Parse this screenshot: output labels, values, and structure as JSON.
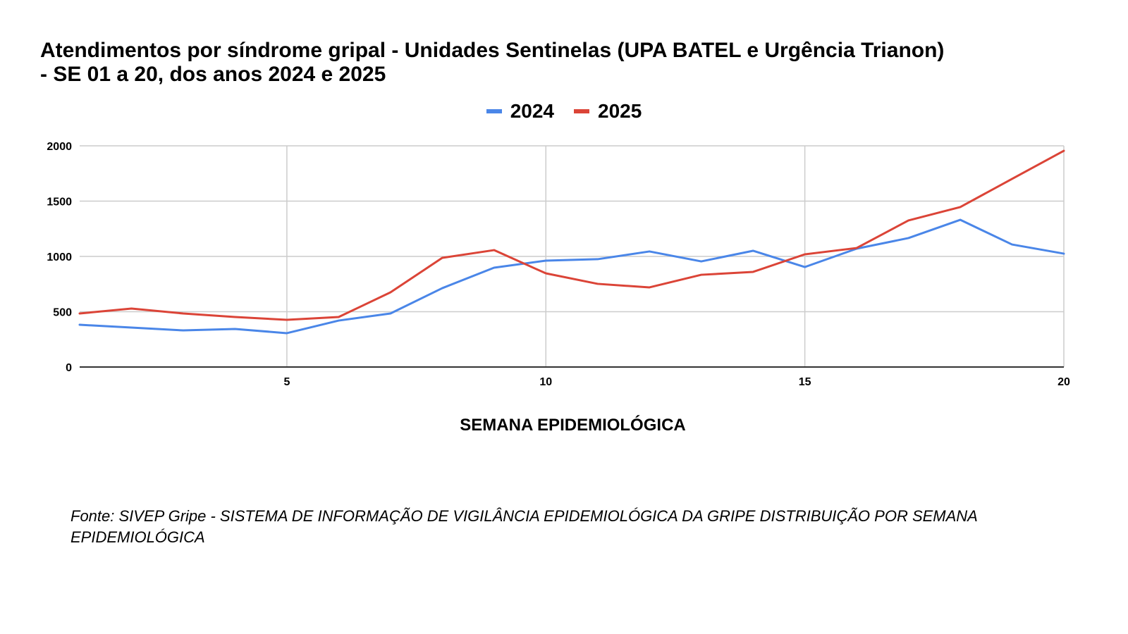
{
  "title_lines": [
    "Atendimentos por síndrome gripal - Unidades Sentinelas (UPA BATEL e Urgência Trianon)",
    "- SE 01 a 20, dos anos 2024 e 2025"
  ],
  "source_note": "Fonte: SIVEP Gripe - SISTEMA DE INFORMAÇÃO DE VIGILÂNCIA EPIDEMIOLÓGICA DA GRIPE DISTRIBUIÇÃO POR SEMANA EPIDEMIOLÓGICA",
  "chart_data": {
    "type": "line",
    "title": "Atendimentos por síndrome gripal - Unidades Sentinelas (UPA BATEL e Urgência Trianon) - SE 01 a 20, dos anos 2024 e 2025",
    "xlabel": "SEMANA EPIDEMIOLÓGICA",
    "ylabel": "",
    "x": [
      1,
      2,
      3,
      4,
      5,
      6,
      7,
      8,
      9,
      10,
      11,
      12,
      13,
      14,
      15,
      16,
      17,
      18,
      19,
      20
    ],
    "xlim": [
      1,
      20
    ],
    "ylim": [
      0,
      2000
    ],
    "x_ticks": [
      5,
      10,
      15,
      20
    ],
    "y_ticks": [
      0,
      500,
      1000,
      1500,
      2000
    ],
    "grid": true,
    "legend_position": "top",
    "series": [
      {
        "name": "2024",
        "color": "#4a86e8",
        "values": [
          382,
          357,
          331,
          344,
          306,
          420,
          484,
          713,
          898,
          962,
          975,
          1045,
          955,
          1051,
          904,
          1070,
          1166,
          1331,
          1108,
          1025
        ]
      },
      {
        "name": "2025",
        "color": "#db4437",
        "values": [
          484,
          529,
          484,
          452,
          427,
          452,
          675,
          987,
          1057,
          847,
          752,
          720,
          834,
          860,
          1019,
          1076,
          1325,
          1446,
          1701,
          1955
        ]
      }
    ]
  }
}
